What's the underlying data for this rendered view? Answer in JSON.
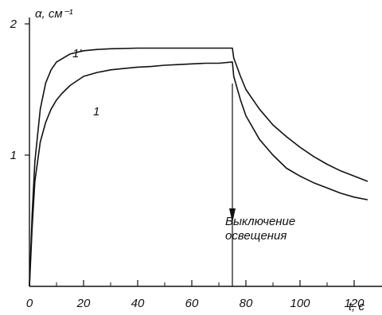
{
  "chart_data": {
    "type": "line",
    "title": "",
    "xlabel": "t, c",
    "ylabel": "α, см⁻¹",
    "xlim": [
      0,
      125
    ],
    "ylim": [
      0,
      2
    ],
    "x_ticks": [
      0,
      20,
      40,
      60,
      80,
      100,
      120
    ],
    "x_tick_labels": [
      "0",
      "20",
      "40",
      "60",
      "80",
      "100",
      "120"
    ],
    "y_ticks": [
      1,
      2
    ],
    "y_tick_labels": [
      "1",
      "2"
    ],
    "grid": false,
    "legend": "none",
    "series": [
      {
        "name": "1'",
        "x": [
          0,
          1,
          2,
          4,
          6,
          8,
          10,
          15,
          20,
          25,
          30,
          40,
          50,
          60,
          70,
          75,
          75.5,
          78,
          80,
          85,
          90,
          95,
          100,
          105,
          110,
          115,
          120,
          125
        ],
        "y": [
          0.0,
          0.55,
          0.95,
          1.35,
          1.55,
          1.65,
          1.71,
          1.77,
          1.795,
          1.805,
          1.81,
          1.815,
          1.815,
          1.815,
          1.815,
          1.815,
          1.74,
          1.6,
          1.5,
          1.35,
          1.23,
          1.14,
          1.06,
          0.99,
          0.93,
          0.88,
          0.84,
          0.8
        ]
      },
      {
        "name": "1",
        "x": [
          0,
          1,
          2,
          4,
          6,
          8,
          10,
          12,
          15,
          20,
          25,
          30,
          35,
          40,
          45,
          50,
          55,
          60,
          65,
          70,
          75,
          75.5,
          78,
          80,
          85,
          90,
          95,
          100,
          105,
          110,
          115,
          120,
          125
        ],
        "y": [
          0.0,
          0.45,
          0.8,
          1.1,
          1.25,
          1.35,
          1.42,
          1.47,
          1.53,
          1.6,
          1.63,
          1.65,
          1.66,
          1.67,
          1.675,
          1.685,
          1.69,
          1.695,
          1.7,
          1.7,
          1.71,
          1.6,
          1.42,
          1.3,
          1.12,
          1.0,
          0.9,
          0.84,
          0.79,
          0.75,
          0.71,
          0.68,
          0.66
        ]
      }
    ],
    "annotations": [
      {
        "text": "Выключение",
        "x": 75
      },
      {
        "text": "освещения",
        "x": 75
      }
    ]
  }
}
